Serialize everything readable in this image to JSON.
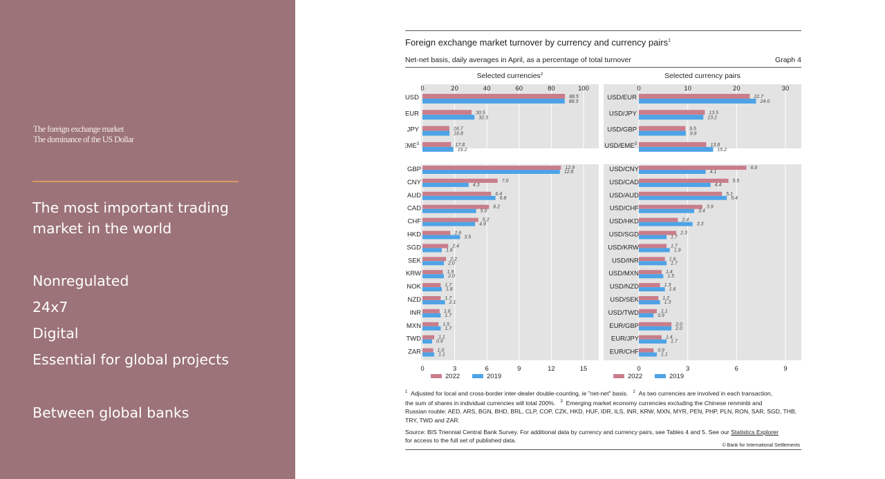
{
  "slide": {
    "subtitle_1": "The foreign exchange market",
    "subtitle_2": "The dominance of the US Dollar",
    "bullet_1a": "The most important trading",
    "bullet_1b": "market in the world",
    "bullet_2": "Nonregulated",
    "bullet_3": "24x7",
    "bullet_4": "Digital",
    "bullet_5": "Essential for global projects",
    "bullet_6": "Between global banks"
  },
  "figure": {
    "title": "Foreign exchange market turnover by currency and currency pairs",
    "title_note": "1",
    "subtitle": "Net-net basis, daily averages in April, as a percentage of total turnover",
    "graph_number": "Graph 4",
    "footnote_1a": "Adjusted for local and cross-border inter-dealer double-counting, ie \"net-net\" basis.",
    "footnote_2a": "As two currencies are involved in each transaction,",
    "footnote_2b": "the sum of shares in individual currencies will total 200%.",
    "footnote_3a": "Emerging market economy currencies excluding the Chinese renminbi and",
    "footnote_3b": "Russian rouble: AED, ARS, BGN, BHD, BRL, CLP, COP, CZK, HKD, HUF, IDR, ILS, INR, KRW, MXN, MYR, PEN, PHP, PLN, RON, SAR, SGD, THB,",
    "footnote_3c": "TRY, TWD and ZAR.",
    "source_1": "Source: BIS Triennial Central Bank Survey. For additional data by currency and currency pairs, see Tables 4 and 5. See our",
    "source_link": "Statistics Explorer",
    "source_2": "for access to the full set of published data.",
    "copyright": "© Bank for International Settlements"
  },
  "colors": {
    "c2022": "#c97d8a",
    "c2019": "#4ea3e6",
    "panel": "#e3e3e3",
    "left_panel": "#9c7379",
    "divider": "#d99a62"
  },
  "chart_data": [
    {
      "type": "bar",
      "orientation": "horizontal",
      "title": "Selected currencies",
      "title_note": "2",
      "xlim": [
        0,
        100
      ],
      "xticks": [
        0,
        20,
        40,
        60,
        80,
        100
      ],
      "categories": [
        "USD",
        "EUR",
        "JPY",
        "EME"
      ],
      "category_notes": [
        "",
        "",
        "",
        "3"
      ],
      "series": [
        {
          "name": "2022",
          "values": [
            88.5,
            30.5,
            16.7,
            17.8
          ]
        },
        {
          "name": "2019",
          "values": [
            88.3,
            32.3,
            16.8,
            19.2
          ]
        }
      ]
    },
    {
      "type": "bar",
      "orientation": "horizontal",
      "title": "Selected currency pairs",
      "xlim": [
        0,
        30
      ],
      "xticks": [
        0,
        10,
        20,
        30
      ],
      "categories": [
        "USD/EUR",
        "USD/JPY",
        "USD/GBP",
        "USD/EME"
      ],
      "category_notes": [
        "",
        "",
        "",
        "3"
      ],
      "series": [
        {
          "name": "2022",
          "values": [
            22.7,
            13.5,
            9.5,
            13.8
          ]
        },
        {
          "name": "2019",
          "values": [
            24.0,
            13.2,
            9.6,
            15.2
          ]
        }
      ]
    },
    {
      "type": "bar",
      "orientation": "horizontal",
      "xlim": [
        0,
        15
      ],
      "xticks": [
        0,
        3,
        6,
        9,
        12,
        15
      ],
      "categories": [
        "GBP",
        "CNY",
        "AUD",
        "CAD",
        "CHF",
        "HKD",
        "SGD",
        "SEK",
        "KRW",
        "NOK",
        "NZD",
        "INR",
        "MXN",
        "TWD",
        "ZAR"
      ],
      "series": [
        {
          "name": "2022",
          "values": [
            12.9,
            7.0,
            6.4,
            6.2,
            5.2,
            2.6,
            2.4,
            2.2,
            1.9,
            1.7,
            1.7,
            1.6,
            1.5,
            1.1,
            1.0
          ]
        },
        {
          "name": "2019",
          "values": [
            12.8,
            4.3,
            6.8,
            5.0,
            4.9,
            3.5,
            1.8,
            2.0,
            2.0,
            1.8,
            2.1,
            1.7,
            1.7,
            0.9,
            1.1
          ]
        }
      ],
      "legend": [
        "2022",
        "2019"
      ],
      "legend_position": "bottom"
    },
    {
      "type": "bar",
      "orientation": "horizontal",
      "xlim": [
        0,
        9
      ],
      "xticks": [
        0,
        3,
        6,
        9
      ],
      "categories": [
        "USD/CNY",
        "USD/CAD",
        "USD/AUD",
        "USD/CHF",
        "USD/HKD",
        "USD/SGD",
        "USD/KRW",
        "USD/INR",
        "USD/MXN",
        "USD/NZD",
        "USD/SEK",
        "USD/TWD",
        "EUR/GBP",
        "EUR/JPY",
        "EUR/CHF"
      ],
      "series": [
        {
          "name": "2022",
          "values": [
            6.6,
            5.5,
            5.1,
            3.9,
            2.4,
            2.3,
            1.7,
            1.6,
            1.4,
            1.3,
            1.2,
            1.1,
            2.0,
            1.4,
            0.9
          ]
        },
        {
          "name": "2019",
          "values": [
            4.1,
            4.4,
            5.4,
            3.4,
            3.3,
            1.7,
            1.9,
            1.7,
            1.5,
            1.6,
            1.3,
            0.9,
            2.0,
            1.7,
            1.1
          ]
        }
      ],
      "legend": [
        "2022",
        "2019"
      ],
      "legend_position": "bottom"
    }
  ]
}
